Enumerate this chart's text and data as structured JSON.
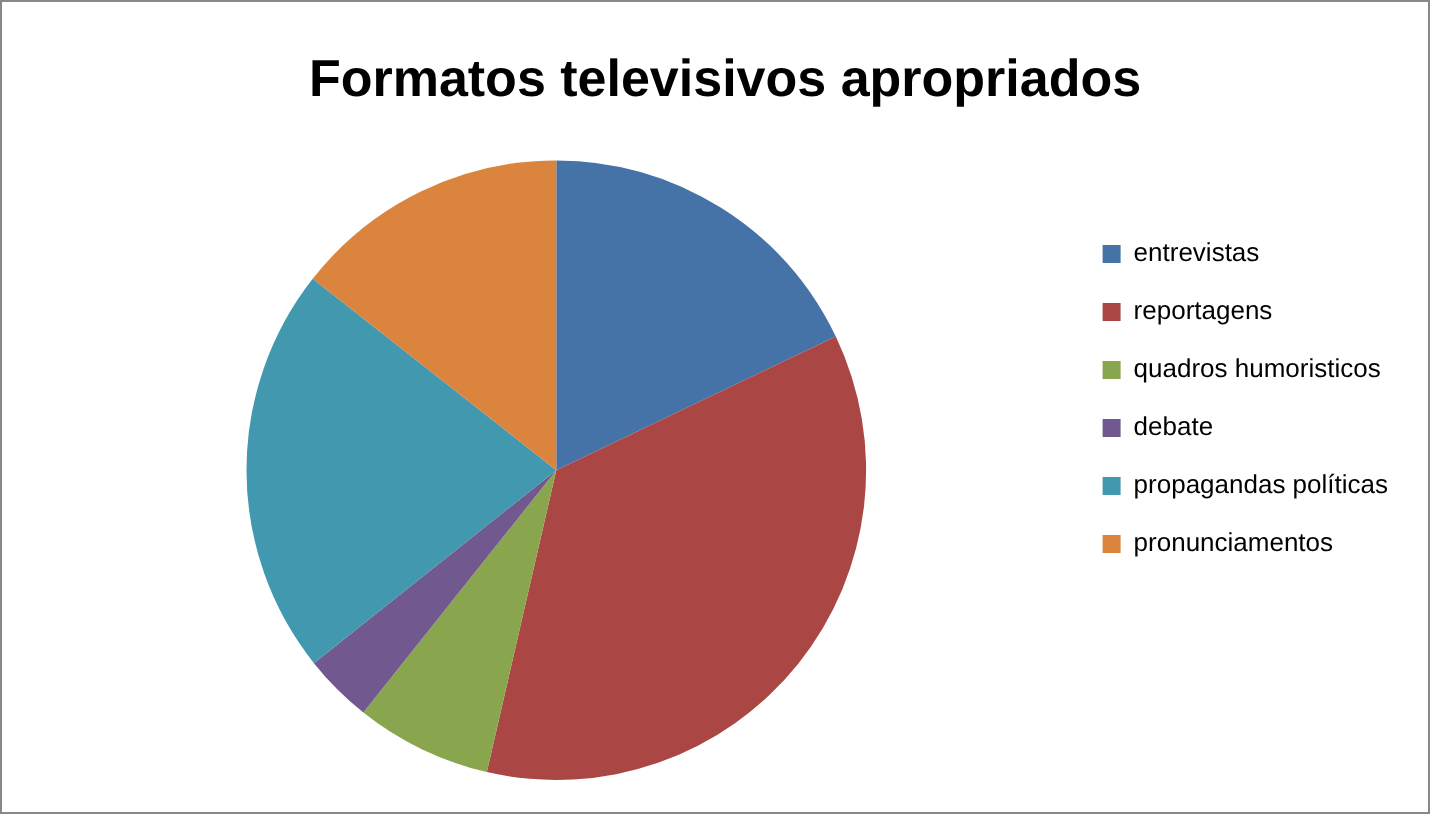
{
  "chart_data": {
    "type": "pie",
    "title": "Formatos televisivos apropriados",
    "categories": [
      "entrevistas",
      "reportagens",
      "quadros humoristicos",
      "debate",
      "propagandas políticas",
      "pronunciamentos"
    ],
    "values": [
      17.9,
      35.7,
      7.1,
      3.6,
      21.3,
      14.4
    ],
    "colors": [
      "#4572a7",
      "#aa4643",
      "#89a54e",
      "#71588f",
      "#4198af",
      "#db843d"
    ],
    "legend": "right"
  }
}
